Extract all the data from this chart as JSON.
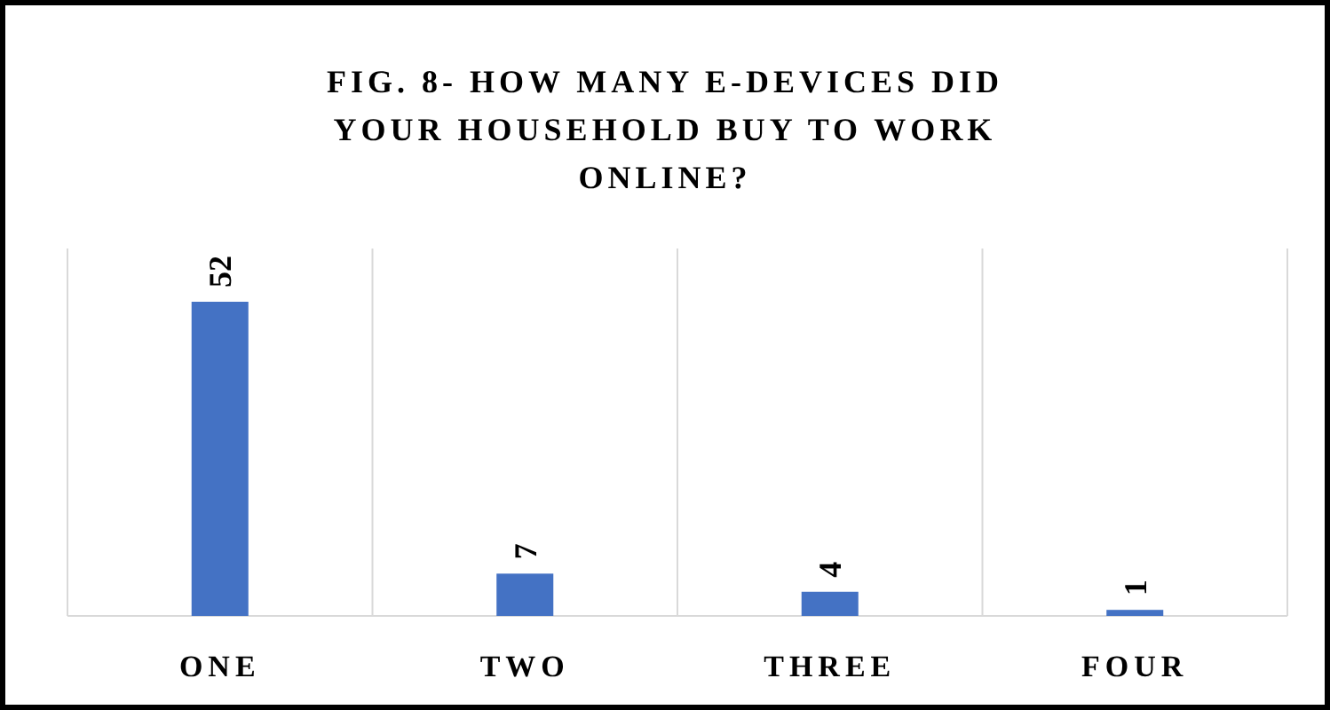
{
  "chart_data": {
    "type": "bar",
    "title": "FIG. 8- HOW MANY E-DEVICES DID YOUR HOUSEHOLD BUY TO WORK ONLINE?",
    "categories": [
      "ONE",
      "TWO",
      "THREE",
      "FOUR"
    ],
    "values": [
      52,
      7,
      4,
      1
    ],
    "color": "#4472c4",
    "data_labels": true,
    "grid": "x"
  }
}
